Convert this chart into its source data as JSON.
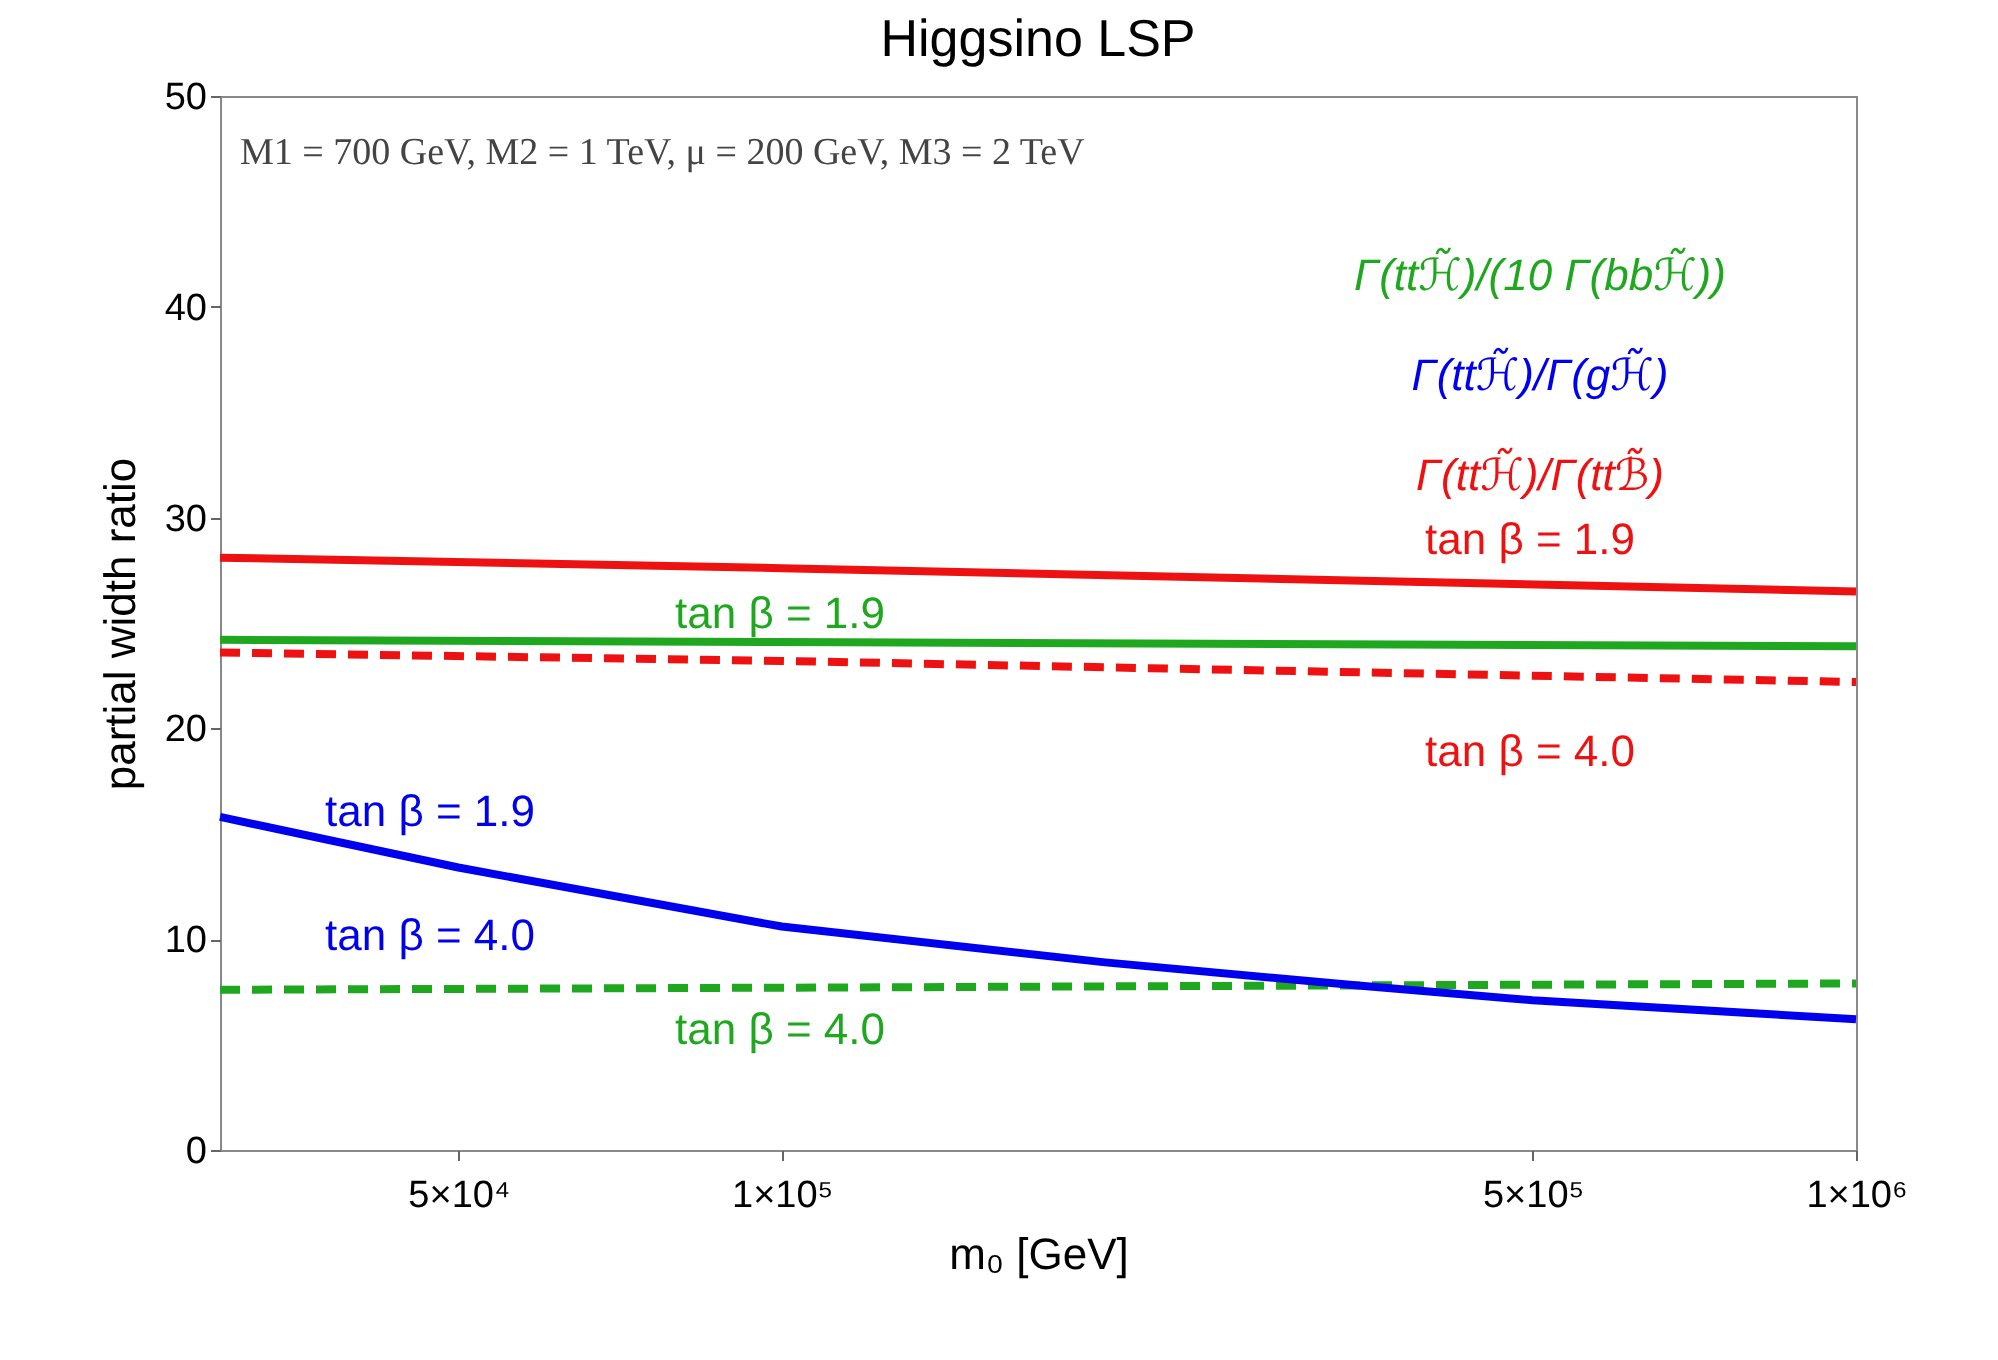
{
  "chart_data": {
    "type": "line",
    "title": "Higgsino LSP",
    "xlabel": "m₀ [GeV]",
    "ylabel": "partial width ratio",
    "log": "x",
    "xlim": [
      30000,
      1000000
    ],
    "xticks": [
      {
        "value": 50000,
        "label": "5×10⁴"
      },
      {
        "value": 100000,
        "label": "1×10⁵"
      },
      {
        "value": 500000,
        "label": "5×10⁵"
      },
      {
        "value": 1000000,
        "label": "1×10⁶"
      }
    ],
    "ylim": [
      0,
      50
    ],
    "yticks": [
      0,
      10,
      20,
      30,
      40,
      50
    ],
    "grid": false,
    "marker": "none",
    "annotations": [
      "M1 = 700 GeV, M2 = 1 TeV, μ = 200 GeV, M3 = 2 TeV",
      "Γ(ttℋ̃)/(10 Γ(bbℋ̃))",
      "Γ(ttℋ̃)/Γ(gℋ̃)",
      "Γ(ttℋ̃)/Γ(ttℬ̃)"
    ],
    "series": [
      {
        "name": "tan β = 1.9",
        "color": "#1fa81f",
        "line_style": "solid",
        "x": [
          30000,
          100000,
          1000000
        ],
        "values": [
          24.2,
          24.1,
          23.9
        ]
      },
      {
        "name": "tan β = 4.0",
        "color": "#1fa81f",
        "line_style": "dashed",
        "x": [
          30000,
          100000,
          1000000
        ],
        "values": [
          7.6,
          7.7,
          7.9
        ]
      },
      {
        "name": "tan β = 1.9",
        "color": "#0000ee",
        "line_style": "solid",
        "x": [
          30000,
          50000,
          100000,
          200000,
          344000,
          500000,
          1000000
        ],
        "values": [
          15.8,
          13.4,
          10.6,
          8.9,
          7.8,
          7.1,
          6.2
        ]
      },
      {
        "name": "tan β = 4.0",
        "color": "#0000ee",
        "line_style": "dashed"
      },
      {
        "name": "tan β = 1.9",
        "color": "#ee1111",
        "line_style": "solid",
        "x": [
          30000,
          100000,
          1000000
        ],
        "values": [
          28.1,
          27.6,
          26.5
        ]
      },
      {
        "name": "tan β = 4.0",
        "color": "#ee1111",
        "line_style": "dashed",
        "x": [
          30000,
          100000,
          1000000
        ],
        "values": [
          23.6,
          23.2,
          22.2
        ]
      }
    ]
  }
}
